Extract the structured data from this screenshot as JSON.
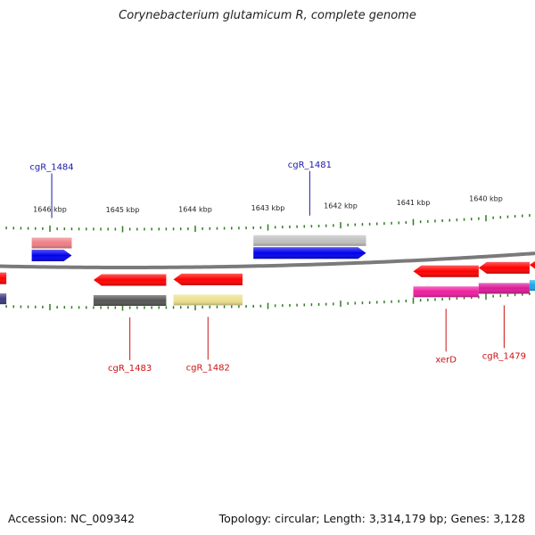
{
  "header": {
    "title": "Corynebacterium glutamicum R, complete genome"
  },
  "footer": {
    "accession": "Accession: NC_009342",
    "stats": "Topology: circular; Length: 3,314,179 bp; Genes: 3,128"
  },
  "scale": [
    {
      "label": "1646 kbp",
      "pos": 1646.0
    },
    {
      "label": "1645 kbp",
      "pos": 1645.0
    },
    {
      "label": "1644 kbp",
      "pos": 1644.0
    },
    {
      "label": "1643 kbp",
      "pos": 1643.0
    },
    {
      "label": "1642 kbp",
      "pos": 1642.0
    },
    {
      "label": "1641 kbp",
      "pos": 1641.0
    },
    {
      "label": "1640 kbp",
      "pos": 1640.0
    }
  ],
  "colors": {
    "backbone": "#7a7a7a",
    "tick": "#2e7d1e",
    "label_forward": "#1a1aa8",
    "label_reverse": "#cc1111"
  },
  "features": [
    {
      "name": "cgR_1484",
      "strand": "+",
      "start": 1645.7,
      "end": 1646.25,
      "label": "cgR_1484",
      "cds": "#0000ee",
      "anno": "#ee7f86"
    },
    {
      "name": "cgR_1481",
      "strand": "+",
      "start": 1641.65,
      "end": 1643.2,
      "label": "cgR_1481",
      "cds": "#0000ee",
      "anno": "#c0c0c0"
    },
    {
      "name": "left-edge",
      "strand": "-",
      "start": 1646.6,
      "end": 1647.2,
      "label": "",
      "cds": "#ff0000",
      "anno": "#3d3880"
    },
    {
      "name": "cgR_1483",
      "strand": "-",
      "start": 1644.4,
      "end": 1645.4,
      "label": "cgR_1483",
      "cds": "#ff0000",
      "anno": "#555555"
    },
    {
      "name": "cgR_1482",
      "strand": "-",
      "start": 1643.35,
      "end": 1644.3,
      "label": "cgR_1482",
      "cds": "#ff0000",
      "anno": "#ece08e"
    },
    {
      "name": "xerD",
      "strand": "-",
      "start": 1640.1,
      "end": 1641.0,
      "label": "xerD",
      "cds": "#ff0000",
      "anno": "#ee1ea0"
    },
    {
      "name": "cgR_1479",
      "strand": "-",
      "start": 1639.4,
      "end": 1640.1,
      "label": "cgR_1479",
      "cds": "#ff0000",
      "anno": "#dc1a98"
    },
    {
      "name": "right-edge",
      "strand": "-",
      "start": 1638.9,
      "end": 1639.4,
      "label": "",
      "cds": "#ff0000",
      "anno": "#1aa6e8"
    }
  ]
}
